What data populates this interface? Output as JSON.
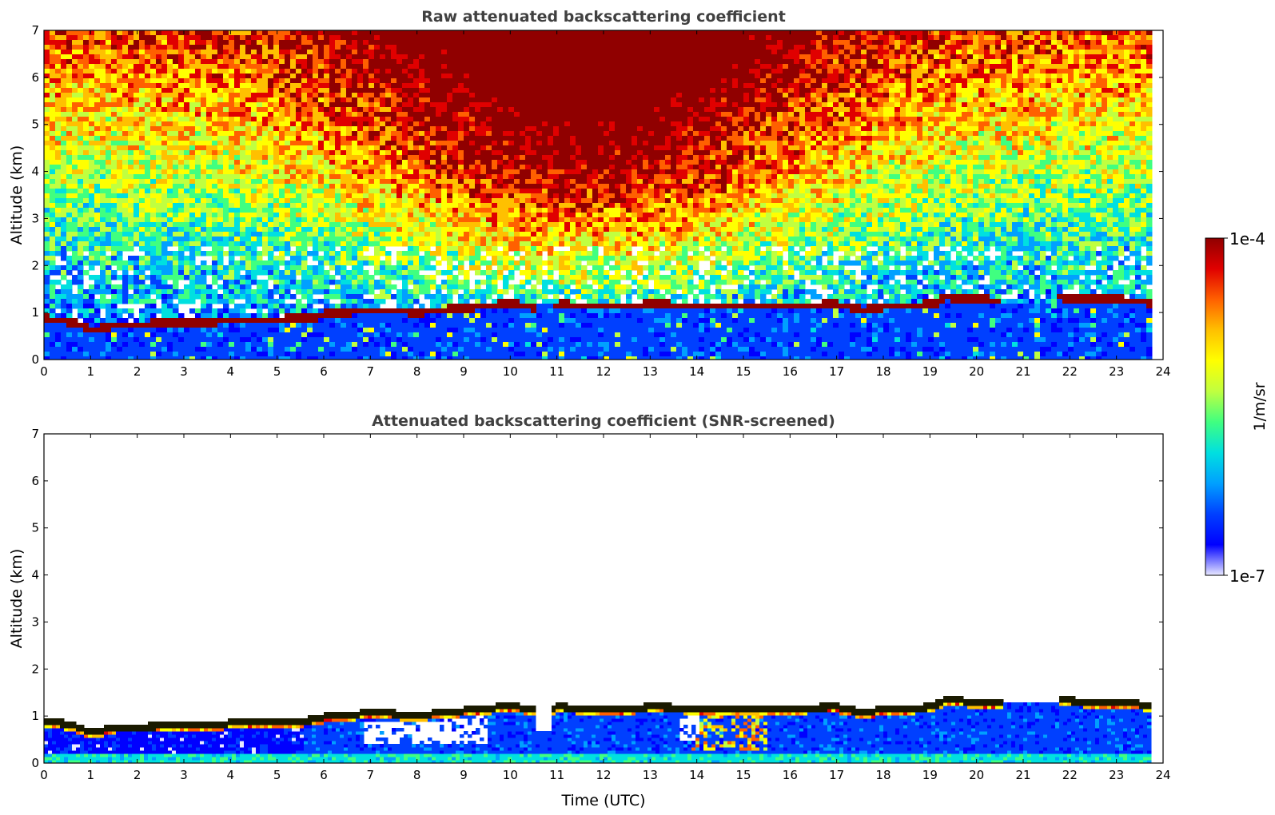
{
  "chart_data": [
    {
      "type": "heatmap",
      "title": "Raw attenuated backscattering coefficient",
      "xlabel": "",
      "ylabel": "Altitude (km)",
      "xlim": [
        0,
        24
      ],
      "ylim": [
        0,
        7
      ],
      "xticks": [
        "0",
        "1",
        "2",
        "3",
        "4",
        "5",
        "6",
        "7",
        "8",
        "9",
        "10",
        "11",
        "12",
        "13",
        "14",
        "15",
        "16",
        "17",
        "18",
        "19",
        "20",
        "21",
        "22",
        "23",
        "24"
      ],
      "yticks": [
        "0",
        "1",
        "2",
        "3",
        "4",
        "5",
        "6",
        "7"
      ],
      "data_extent_x": [
        0,
        23.8
      ],
      "cloud_base_km": [
        [
          0,
          0.92
        ],
        [
          0.5,
          0.85
        ],
        [
          1,
          0.68
        ],
        [
          1.5,
          0.8
        ],
        [
          2,
          0.8
        ],
        [
          3,
          0.82
        ],
        [
          4,
          0.88
        ],
        [
          5,
          0.9
        ],
        [
          5.8,
          0.95
        ],
        [
          6,
          1.02
        ],
        [
          7,
          1.1
        ],
        [
          8,
          1.05
        ],
        [
          9,
          1.15
        ],
        [
          10,
          1.25
        ],
        [
          10.5,
          1.15
        ],
        [
          11,
          1.22
        ],
        [
          12,
          1.18
        ],
        [
          13,
          1.22
        ],
        [
          14,
          1.2
        ],
        [
          15,
          1.18
        ],
        [
          16,
          1.2
        ],
        [
          17,
          1.22
        ],
        [
          17.5,
          1.1
        ],
        [
          18,
          1.18
        ],
        [
          19,
          1.22
        ],
        [
          19.3,
          1.38
        ],
        [
          20,
          1.32
        ],
        [
          20.5,
          1.3
        ],
        [
          21.7,
          1.38
        ],
        [
          22,
          1.35
        ],
        [
          23,
          1.32
        ],
        [
          23.8,
          1.25
        ]
      ],
      "cloud_gaps_x": [
        [
          10.5,
          10.85
        ],
        [
          20.5,
          21.7
        ]
      ]
    },
    {
      "type": "heatmap",
      "title": "Attenuated backscattering coefficient (SNR-screened)",
      "xlabel": "Time (UTC)",
      "ylabel": "Altitude (km)",
      "xlim": [
        0,
        24
      ],
      "ylim": [
        0,
        7
      ],
      "xticks": [
        "0",
        "1",
        "2",
        "3",
        "4",
        "5",
        "6",
        "7",
        "8",
        "9",
        "10",
        "11",
        "12",
        "13",
        "14",
        "15",
        "16",
        "17",
        "18",
        "19",
        "20",
        "21",
        "22",
        "23",
        "24"
      ],
      "yticks": [
        "0",
        "1",
        "2",
        "3",
        "4",
        "5",
        "6",
        "7"
      ],
      "data_extent_x": [
        0,
        23.8
      ]
    }
  ],
  "colorbar": {
    "label": "1/m/sr",
    "max_label": "1e-4",
    "min_label": "1e-7",
    "colormap": [
      "#e8e8ff",
      "#0000ff",
      "#0040ff",
      "#00a0ff",
      "#00e0e0",
      "#40ff80",
      "#c0ff40",
      "#ffff00",
      "#ffc000",
      "#ff6000",
      "#e00000",
      "#900000"
    ]
  }
}
